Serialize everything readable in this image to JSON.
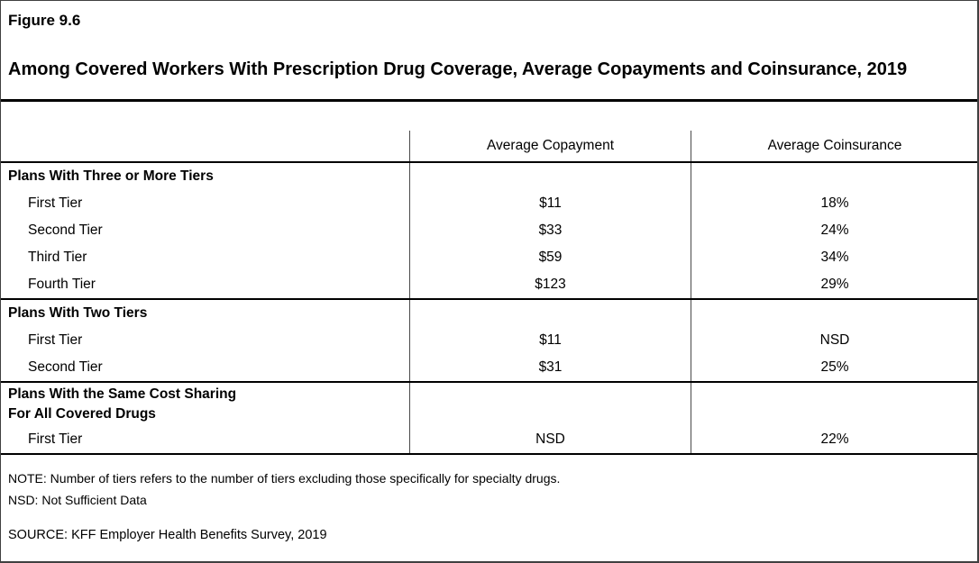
{
  "figure": {
    "number": "Figure 9.6",
    "title": "Among Covered Workers With Prescription Drug Coverage, Average Copayments and Coinsurance, 2019"
  },
  "table": {
    "col_copayment": "Average Copayment",
    "col_coinsurance": "Average Coinsurance",
    "rows": [
      {
        "type": "section",
        "label": "Plans With Three or More Tiers",
        "copay": "",
        "coinsurance": ""
      },
      {
        "type": "item",
        "label": "First Tier",
        "copay": "$11",
        "coinsurance": "18%"
      },
      {
        "type": "item",
        "label": "Second Tier",
        "copay": "$33",
        "coinsurance": "24%"
      },
      {
        "type": "item",
        "label": "Third Tier",
        "copay": "$59",
        "coinsurance": "34%"
      },
      {
        "type": "item",
        "label": "Fourth Tier",
        "copay": "$123",
        "coinsurance": "29%"
      },
      {
        "type": "section",
        "label": "Plans With Two Tiers",
        "copay": "",
        "coinsurance": ""
      },
      {
        "type": "item",
        "label": "First Tier",
        "copay": "$11",
        "coinsurance": "NSD"
      },
      {
        "type": "item",
        "label": "Second Tier",
        "copay": "$31",
        "coinsurance": "25%"
      },
      {
        "type": "section",
        "label": "Plans With the Same Cost Sharing\nFor All Covered Drugs",
        "copay": "",
        "coinsurance": ""
      },
      {
        "type": "item",
        "label": "First Tier",
        "copay": "NSD",
        "coinsurance": "22%"
      }
    ]
  },
  "notes": {
    "note": "NOTE: Number of tiers refers to the number of tiers excluding those specifically for specialty drugs.",
    "nsd": "NSD: Not Sufficient Data",
    "source": "SOURCE: KFF Employer Health Benefits Survey, 2019"
  }
}
